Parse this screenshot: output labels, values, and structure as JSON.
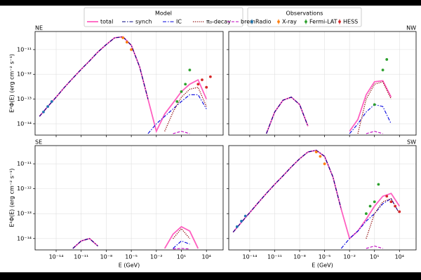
{
  "chart_data": {
    "type": "line",
    "xscale": "log",
    "yscale": "log",
    "grid": true,
    "xlabel": "E (GeV)",
    "ylabel": "E²Φ(E) (erg cm⁻² s⁻¹)",
    "model_legend_title": "Model",
    "observations_legend_title": "Observations",
    "xlim": [
      3e-17,
      1000000.0
    ],
    "ylim": [
      3.5e-15,
      5.4e-11
    ],
    "xticks": [
      {
        "value": 1e-14,
        "label": "10⁻¹⁴"
      },
      {
        "value": 1e-11,
        "label": "10⁻¹¹"
      },
      {
        "value": 1e-08,
        "label": "10⁻⁸"
      },
      {
        "value": 1e-05,
        "label": "10⁻⁵"
      },
      {
        "value": 0.01,
        "label": "10⁻²"
      },
      {
        "value": 10,
        "label": "10¹"
      },
      {
        "value": 10000.0,
        "label": "10⁴"
      }
    ],
    "yticks": [
      {
        "value": 1e-14,
        "label": "10⁻¹⁴"
      },
      {
        "value": 1e-13,
        "label": "10⁻¹³"
      },
      {
        "value": 1e-12,
        "label": "10⁻¹²"
      },
      {
        "value": 1e-11,
        "label": "10⁻¹¹"
      }
    ],
    "x": [
      1e-16,
      1e-15,
      1e-14,
      1e-13,
      1e-12,
      1e-11,
      1e-10,
      1e-09,
      1e-08,
      1e-07,
      1e-06,
      1e-05,
      0.0001,
      0.001,
      0.01,
      0.1,
      1,
      10,
      100,
      1000,
      10000,
      100000
    ],
    "series": [
      {
        "name": "total",
        "color": "#ff5fc0",
        "style": "solid"
      },
      {
        "name": "synch",
        "color": "#000080",
        "style": "dashdot"
      },
      {
        "name": "IC",
        "color": "#0000dd",
        "style": "dashdot"
      },
      {
        "name": "π₀-decay",
        "color": "#8b0000",
        "style": "dotted"
      },
      {
        "name": "brem",
        "color": "#c000c0",
        "style": "dashed"
      }
    ],
    "observations": [
      {
        "name": "Radio",
        "color": "#1f77b4"
      },
      {
        "name": "X-ray",
        "color": "#ff7f0e"
      },
      {
        "name": "Fermi-LAT",
        "color": "#2ca02c"
      },
      {
        "name": "HESS",
        "color": "#d62728"
      }
    ],
    "panels": [
      {
        "title": "NE",
        "series": [
          {
            "values": [
              2e-14,
              5e-14,
              1.2e-13,
              3e-13,
              7e-13,
              1.6e-12,
              3.5e-12,
              8e-12,
              1.6e-11,
              3e-11,
              3.3e-11,
              1.5e-11,
              2e-12,
              1e-13,
              5e-15,
              2.5e-14,
              7e-14,
              2e-13,
              4e-13,
              6e-13,
              1e-13,
              null
            ]
          },
          {
            "values": [
              2e-14,
              5e-14,
              1.2e-13,
              3e-13,
              7e-13,
              1.6e-12,
              3.5e-12,
              8e-12,
              1.6e-11,
              3e-11,
              3.3e-11,
              1.5e-11,
              2e-12,
              1e-13,
              null,
              null,
              null,
              null,
              null,
              null,
              null,
              null
            ]
          },
          {
            "values": [
              null,
              null,
              null,
              null,
              null,
              null,
              null,
              null,
              null,
              null,
              null,
              null,
              null,
              4e-15,
              1e-14,
              2e-14,
              4e-14,
              8e-14,
              1.5e-13,
              1.5e-13,
              4e-14,
              null
            ]
          },
          {
            "values": [
              null,
              null,
              null,
              null,
              null,
              null,
              null,
              null,
              null,
              null,
              null,
              null,
              null,
              null,
              null,
              5e-15,
              3e-14,
              1.2e-13,
              2.5e-13,
              3e-13,
              5e-14,
              null
            ]
          },
          {
            "values": [
              null,
              null,
              null,
              null,
              null,
              null,
              null,
              null,
              null,
              null,
              null,
              null,
              null,
              null,
              null,
              null,
              4e-15,
              5e-15,
              4e-15,
              null,
              null,
              null
            ]
          }
        ],
        "observations": [
          {
            "x": [
              3e-16,
              1e-15,
              3e-15
            ],
            "values": [
              3e-14,
              5e-14,
              8e-14
            ]
          },
          {
            "x": [
              1e-06,
              3e-06,
              1e-05
            ],
            "values": [
              3e-11,
              2e-11,
              1e-11
            ]
          },
          {
            "x": [
              3,
              10,
              30,
              100
            ],
            "values": [
              8e-14,
              2e-13,
              4e-13,
              1.5e-12
            ]
          },
          {
            "x": [
              1000,
              3000,
              10000,
              30000
            ],
            "values": [
              4e-13,
              6e-13,
              3e-13,
              8e-13
            ]
          }
        ]
      },
      {
        "title": "NW",
        "series": [
          {
            "values": [
              null,
              null,
              null,
              null,
              4e-15,
              3e-14,
              9e-14,
              1.2e-13,
              6e-14,
              8e-15,
              null,
              null,
              null,
              null,
              5e-15,
              1.5e-14,
              1.5e-13,
              5e-13,
              5.5e-13,
              1.2e-13,
              null,
              null
            ]
          },
          {
            "values": [
              null,
              null,
              null,
              null,
              4e-15,
              3e-14,
              9e-14,
              1.2e-13,
              6e-14,
              8e-15,
              null,
              null,
              null,
              null,
              null,
              null,
              null,
              null,
              null,
              null,
              null,
              null
            ]
          },
          {
            "values": [
              null,
              null,
              null,
              null,
              null,
              null,
              null,
              null,
              null,
              null,
              null,
              null,
              null,
              null,
              4e-15,
              1e-14,
              3e-14,
              6e-14,
              5e-14,
              1e-14,
              null,
              null
            ]
          },
          {
            "values": [
              null,
              null,
              null,
              null,
              null,
              null,
              null,
              null,
              null,
              null,
              null,
              null,
              null,
              null,
              null,
              4e-15,
              1e-13,
              4e-13,
              5e-13,
              1e-13,
              null,
              null
            ]
          },
          {
            "values": [
              null,
              null,
              null,
              null,
              null,
              null,
              null,
              null,
              null,
              null,
              null,
              null,
              null,
              null,
              null,
              null,
              4e-15,
              5e-15,
              4e-15,
              null,
              null,
              null
            ]
          }
        ],
        "observations": [
          {
            "x": [],
            "values": []
          },
          {
            "x": [],
            "values": []
          },
          {
            "x": [
              10,
              100,
              300
            ],
            "values": [
              6e-14,
              1.5e-12,
              4e-12
            ]
          },
          {
            "x": [],
            "values": []
          }
        ]
      },
      {
        "title": "SE",
        "series": [
          {
            "values": [
              null,
              null,
              null,
              null,
              4e-15,
              8e-15,
              1e-14,
              5e-15,
              null,
              null,
              null,
              null,
              null,
              null,
              null,
              4e-15,
              1.5e-14,
              3e-14,
              2e-14,
              4e-15,
              null,
              null
            ]
          },
          {
            "values": [
              null,
              null,
              null,
              null,
              4e-15,
              8e-15,
              1e-14,
              5e-15,
              null,
              null,
              null,
              null,
              null,
              null,
              null,
              null,
              null,
              null,
              null,
              null,
              null,
              null
            ]
          },
          {
            "values": [
              null,
              null,
              null,
              null,
              null,
              null,
              null,
              null,
              null,
              null,
              null,
              null,
              null,
              null,
              null,
              null,
              4e-15,
              8e-15,
              6e-15,
              null,
              null,
              null
            ]
          },
          {
            "values": [
              null,
              null,
              null,
              null,
              null,
              null,
              null,
              null,
              null,
              null,
              null,
              null,
              null,
              null,
              null,
              null,
              1e-14,
              2.5e-14,
              1e-14,
              null,
              null,
              null
            ]
          },
          {
            "values": [
              null,
              null,
              null,
              null,
              null,
              null,
              null,
              null,
              null,
              null,
              null,
              null,
              null,
              null,
              null,
              null,
              3.8e-15,
              4e-15,
              3.8e-15,
              null,
              null,
              null
            ]
          }
        ],
        "observations": [
          {
            "x": [],
            "values": []
          },
          {
            "x": [],
            "values": []
          },
          {
            "x": [],
            "values": []
          },
          {
            "x": [],
            "values": []
          }
        ]
      },
      {
        "title": "SW",
        "series": [
          {
            "values": [
              1.8e-14,
              4.5e-14,
              1.1e-13,
              2.7e-13,
              6.5e-13,
              1.5e-12,
              3.3e-12,
              7.5e-12,
              1.6e-11,
              3e-11,
              3.5e-11,
              2e-11,
              3e-12,
              1.5e-13,
              1e-14,
              2e-14,
              6e-14,
              2e-13,
              5e-13,
              6.5e-13,
              2e-13,
              null
            ]
          },
          {
            "values": [
              1.8e-14,
              4.5e-14,
              1.1e-13,
              2.7e-13,
              6.5e-13,
              1.5e-12,
              3.3e-12,
              7.5e-12,
              1.6e-11,
              3e-11,
              3.5e-11,
              2e-11,
              3e-12,
              1.5e-13,
              null,
              null,
              null,
              null,
              null,
              null,
              null,
              null
            ]
          },
          {
            "values": [
              null,
              null,
              null,
              null,
              null,
              null,
              null,
              null,
              null,
              null,
              null,
              null,
              null,
              4e-15,
              1e-14,
              2e-14,
              5e-14,
              1e-13,
              2.5e-13,
              4e-13,
              1e-13,
              null
            ]
          },
          {
            "values": [
              null,
              null,
              null,
              null,
              null,
              null,
              null,
              null,
              null,
              null,
              null,
              null,
              null,
              null,
              null,
              null,
              1e-14,
              1e-13,
              3e-13,
              4e-13,
              1e-13,
              null
            ]
          },
          {
            "values": [
              null,
              null,
              null,
              null,
              null,
              null,
              null,
              null,
              null,
              null,
              null,
              null,
              null,
              null,
              null,
              null,
              4e-15,
              5e-15,
              4e-15,
              null,
              null,
              null
            ]
          }
        ],
        "observations": [
          {
            "x": [
              3e-16,
              1e-15,
              3e-15
            ],
            "values": [
              3e-14,
              5e-14,
              8e-14
            ]
          },
          {
            "x": [
              1e-06,
              3e-06,
              1e-05
            ],
            "values": [
              3e-11,
              2e-11,
              1e-11
            ]
          },
          {
            "x": [
              1,
              3,
              10,
              30
            ],
            "values": [
              1e-13,
              2e-13,
              3e-13,
              1.5e-12
            ]
          },
          {
            "x": [
              300,
              1000,
              3000,
              10000
            ],
            "values": [
              5e-13,
              3e-13,
              2e-13,
              1.2e-13
            ]
          }
        ]
      }
    ]
  }
}
